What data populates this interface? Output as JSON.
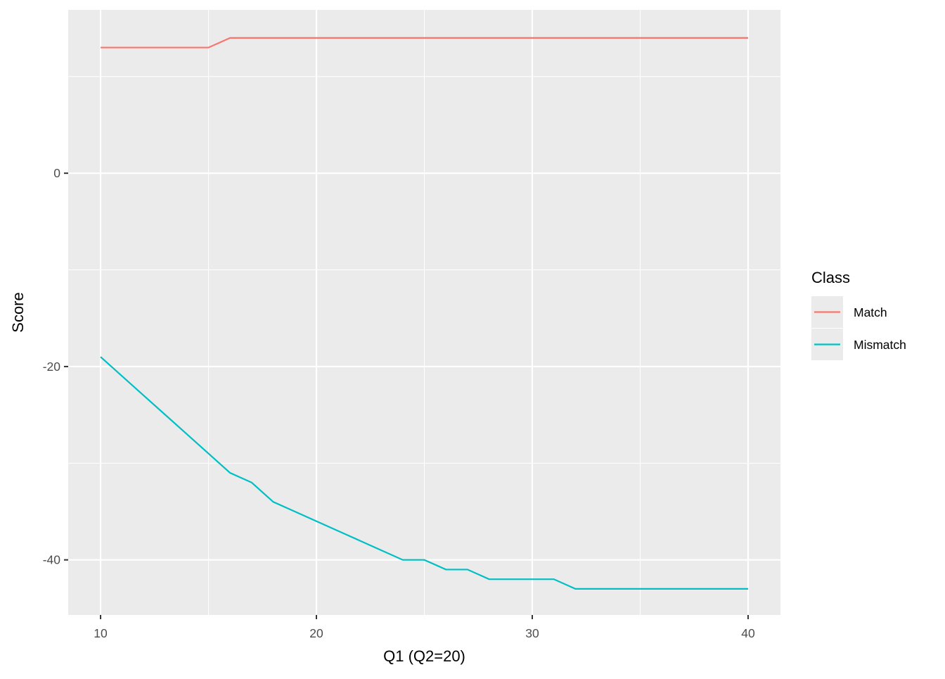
{
  "chart_data": {
    "type": "line",
    "title": "",
    "xlabel": "Q1 (Q2=20)",
    "ylabel": "Score",
    "xlim": [
      8.5,
      41.5
    ],
    "ylim": [
      -45.7,
      16.9
    ],
    "x_ticks": [
      10,
      20,
      30,
      40
    ],
    "y_ticks": [
      0,
      -20,
      -40
    ],
    "x_minor": [
      15,
      25,
      35
    ],
    "y_minor": [
      10,
      -10,
      -30
    ],
    "grid": true,
    "legend": {
      "title": "Class",
      "placement": "right"
    },
    "x": [
      10,
      11,
      12,
      13,
      14,
      15,
      16,
      17,
      18,
      19,
      20,
      21,
      22,
      23,
      24,
      25,
      26,
      27,
      28,
      29,
      30,
      31,
      32,
      33,
      34,
      35,
      36,
      37,
      38,
      39,
      40
    ],
    "series": [
      {
        "name": "Match",
        "color": "#F8766D",
        "values": [
          13,
          13,
          13,
          13,
          13,
          13,
          14,
          14,
          14,
          14,
          14,
          14,
          14,
          14,
          14,
          14,
          14,
          14,
          14,
          14,
          14,
          14,
          14,
          14,
          14,
          14,
          14,
          14,
          14,
          14,
          14
        ]
      },
      {
        "name": "Mismatch",
        "color": "#00BFC4",
        "values": [
          -19,
          -21,
          -23,
          -25,
          -27,
          -29,
          -31,
          -32,
          -34,
          -35,
          -36,
          -37,
          -38,
          -39,
          -40,
          -40,
          -41,
          -41,
          -42,
          -42,
          -42,
          -42,
          -43,
          -43,
          -43,
          -43,
          -43,
          -43,
          -43,
          -43,
          -43
        ]
      }
    ]
  }
}
